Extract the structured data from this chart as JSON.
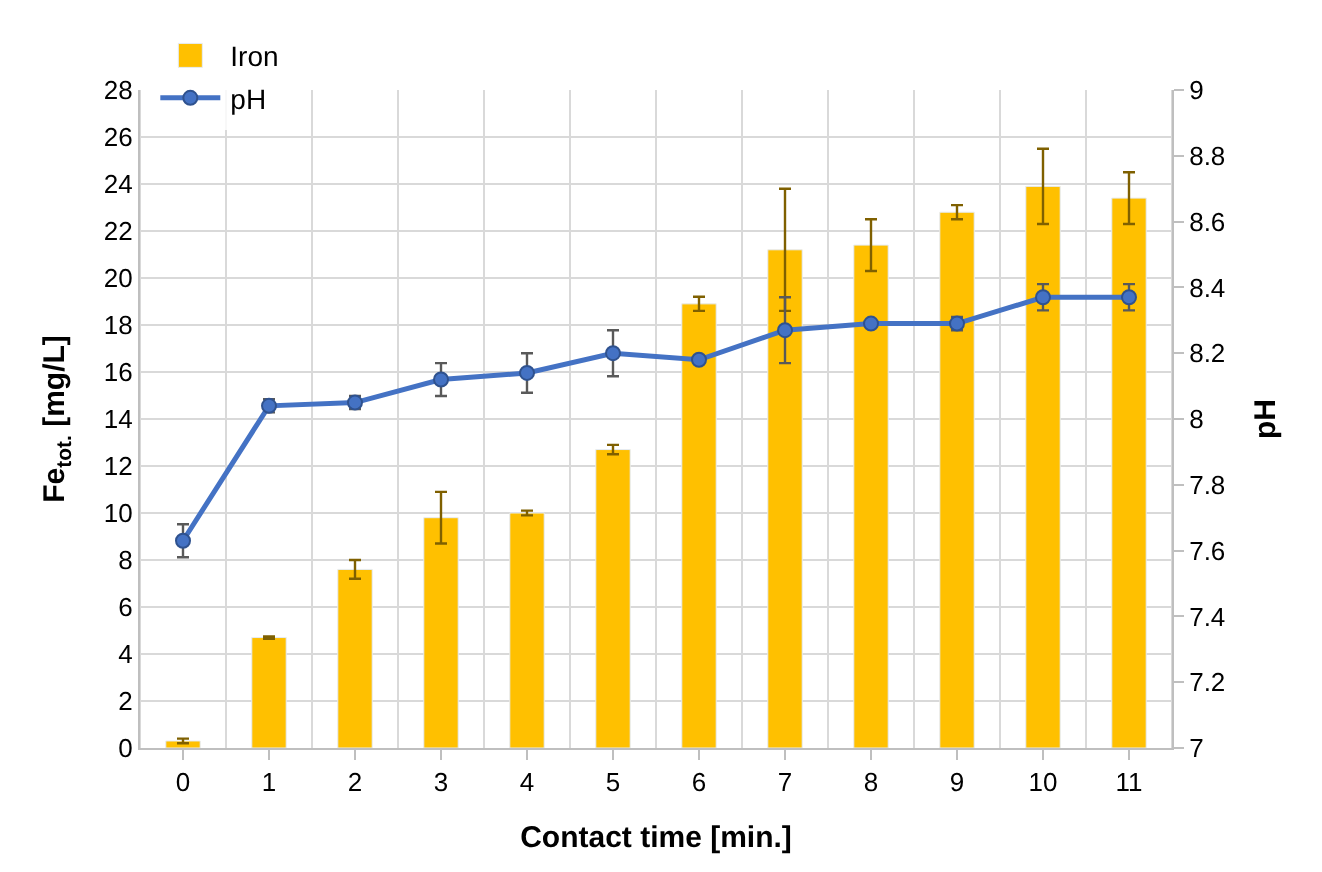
{
  "chart_data": {
    "type": "bar",
    "xlabel": "Contact time [min.]",
    "ylabel": "Fe$_{tot.}$ [mg/L]",
    "y2label": "pH",
    "categories": [
      "0",
      "1",
      "2",
      "3",
      "4",
      "5",
      "6",
      "7",
      "8",
      "9",
      "10",
      "11"
    ],
    "series": [
      {
        "name": "Iron",
        "color": "#ffc000",
        "values": [
          0.3,
          4.7,
          7.6,
          9.8,
          10.0,
          12.7,
          18.9,
          21.2,
          21.4,
          22.8,
          23.9,
          23.4
        ],
        "errors": [
          0.1,
          0.05,
          0.4,
          1.1,
          0.1,
          0.2,
          0.3,
          2.6,
          1.1,
          0.3,
          1.6,
          1.1
        ]
      },
      {
        "name": "pH",
        "type": "line",
        "axis": "y2",
        "color": "#4472c4",
        "marker": "circle",
        "values": [
          7.63,
          8.04,
          8.05,
          8.12,
          8.14,
          8.2,
          8.18,
          8.27,
          8.29,
          8.29,
          8.37,
          8.37
        ],
        "errors": [
          0.05,
          0.02,
          0.02,
          0.05,
          0.06,
          0.07,
          0.01,
          0.1,
          0.01,
          0.02,
          0.04,
          0.04
        ]
      }
    ],
    "ylim": [
      0,
      28
    ],
    "yticks": [
      0,
      2,
      4,
      6,
      8,
      10,
      12,
      14,
      16,
      18,
      20,
      22,
      24,
      26,
      28
    ],
    "y2lim": [
      7,
      9
    ],
    "y2ticks": [
      7,
      {
        "value": 7.2,
        "label": "7.2"
      },
      {
        "value": 7.4,
        "label": "7.4"
      },
      {
        "value": 7.6,
        "label": "7.6"
      },
      {
        "value": 7.8,
        "label": "7.8"
      },
      8,
      {
        "value": 8.2,
        "label": "8.2"
      },
      {
        "value": 8.4,
        "label": "8.4"
      },
      {
        "value": 8.6,
        "label": "8.6"
      },
      {
        "value": 8.8,
        "label": "8.8"
      },
      9
    ],
    "grid": true,
    "legend": "top left"
  }
}
